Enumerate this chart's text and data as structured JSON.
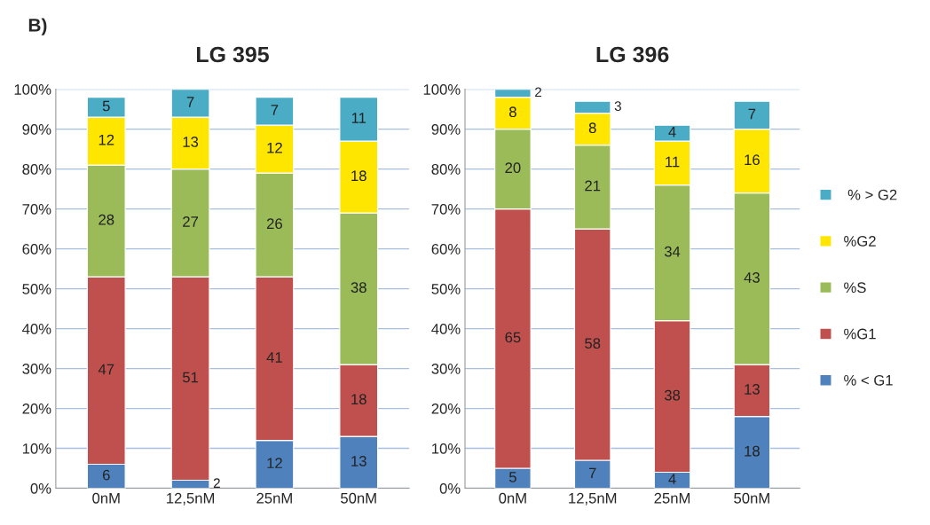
{
  "chart_data": [
    {
      "type": "bar",
      "title": "LG 395",
      "annotations": [
        "B)"
      ],
      "stacked": true,
      "categories": [
        "0nM",
        "12,5nM",
        "25nM",
        "50nM"
      ],
      "series": [
        {
          "color": "#4f81bd",
          "values": [
            6,
            2,
            12,
            13
          ]
        },
        {
          "color": "#c0504d",
          "values": [
            47,
            51,
            41,
            18
          ]
        },
        {
          "color": "#9bbb59",
          "values": [
            28,
            27,
            26,
            38
          ]
        },
        {
          "color": "#ffe600",
          "values": [
            12,
            13,
            12,
            18
          ]
        },
        {
          "color": "#4bacc6",
          "values": [
            5,
            7,
            7,
            11
          ]
        }
      ],
      "ylim": [
        0,
        100
      ],
      "yticks": [
        {
          "value": 0,
          "label": "0%"
        },
        {
          "value": 10,
          "label": "10%"
        },
        {
          "value": 20,
          "label": "20%"
        },
        {
          "value": 30,
          "label": "30%"
        },
        {
          "value": 40,
          "label": "40%"
        },
        {
          "value": 50,
          "label": "50%"
        },
        {
          "value": 60,
          "label": "60%"
        },
        {
          "value": 70,
          "label": "70%"
        },
        {
          "value": 80,
          "label": "80%"
        },
        {
          "value": 90,
          "label": "90%"
        },
        {
          "value": 100,
          "label": "100%"
        }
      ],
      "grid": "y",
      "data_labels": true,
      "legend": false
    },
    {
      "type": "bar",
      "title": "LG 396",
      "stacked": true,
      "categories": [
        "0nM",
        "12,5nM",
        "25nM",
        "50nM"
      ],
      "series": [
        {
          "name": "% < G1",
          "color": "#4f81bd",
          "values": [
            5,
            7,
            4,
            18
          ]
        },
        {
          "name": "%G1",
          "color": "#c0504d",
          "values": [
            65,
            58,
            38,
            13
          ]
        },
        {
          "name": "%S",
          "color": "#9bbb59",
          "values": [
            20,
            21,
            34,
            43
          ]
        },
        {
          "name": "%G2",
          "color": "#ffe600",
          "values": [
            8,
            8,
            11,
            16
          ]
        },
        {
          "name": " % > G2",
          "color": "#4bacc6",
          "values": [
            2,
            3,
            4,
            7
          ]
        }
      ],
      "ylim": [
        0,
        100
      ],
      "yticks": [
        {
          "value": 0,
          "label": "0%"
        },
        {
          "value": 10,
          "label": "10%"
        },
        {
          "value": 20,
          "label": "20%"
        },
        {
          "value": 30,
          "label": "30%"
        },
        {
          "value": 40,
          "label": "40%"
        },
        {
          "value": 50,
          "label": "50%"
        },
        {
          "value": 60,
          "label": "60%"
        },
        {
          "value": 70,
          "label": "70%"
        },
        {
          "value": 80,
          "label": "80%"
        },
        {
          "value": 90,
          "label": "90%"
        },
        {
          "value": 100,
          "label": "100%"
        }
      ],
      "grid": "y",
      "data_labels": true,
      "legend": "right"
    }
  ]
}
